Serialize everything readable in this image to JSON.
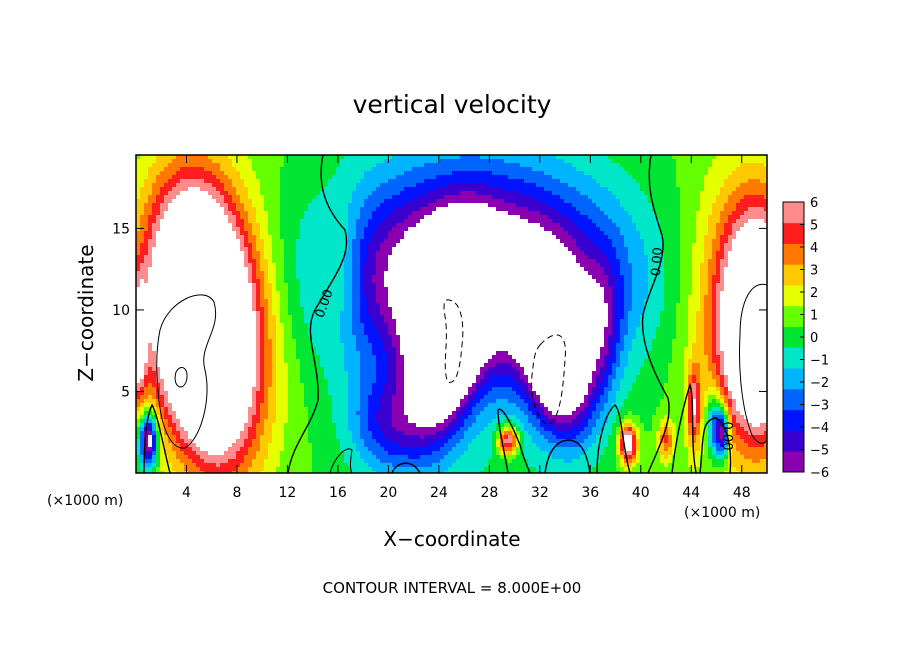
{
  "chart_data": {
    "type": "heatmap",
    "title": "vertical velocity",
    "xlabel": "X−coordinate",
    "ylabel": "Z−coordinate",
    "x_unit": "(×1000 m)",
    "x_unit_right": "(×1000 m)",
    "xlim": [
      0,
      50
    ],
    "ylim": [
      0,
      19.5
    ],
    "x_ticks": [
      {
        "value": 4,
        "label": "4"
      },
      {
        "value": 8,
        "label": "8"
      },
      {
        "value": 12,
        "label": "12"
      },
      {
        "value": 16,
        "label": "16"
      },
      {
        "value": 20,
        "label": "20"
      },
      {
        "value": 24,
        "label": "24"
      },
      {
        "value": 28,
        "label": "28"
      },
      {
        "value": 32,
        "label": "32"
      },
      {
        "value": 36,
        "label": "36"
      },
      {
        "value": 40,
        "label": "40"
      },
      {
        "value": 44,
        "label": "44"
      },
      {
        "value": 48,
        "label": "48"
      }
    ],
    "y_ticks": [
      {
        "value": 5,
        "label": "5"
      },
      {
        "value": 10,
        "label": "10"
      },
      {
        "value": 15,
        "label": "15"
      }
    ],
    "colorbar": {
      "min": -6,
      "max": 6,
      "ticks": [
        {
          "value": 6,
          "label": "6"
        },
        {
          "value": 5,
          "label": "5"
        },
        {
          "value": 4,
          "label": "4"
        },
        {
          "value": 3,
          "label": "3"
        },
        {
          "value": 2,
          "label": "2"
        },
        {
          "value": 1,
          "label": "1"
        },
        {
          "value": 0,
          "label": "0"
        },
        {
          "value": -1,
          "label": "−1"
        },
        {
          "value": -2,
          "label": "−2"
        },
        {
          "value": -3,
          "label": "−3"
        },
        {
          "value": -4,
          "label": "−4"
        },
        {
          "value": -5,
          "label": "−5"
        },
        {
          "value": -6,
          "label": "−6"
        }
      ],
      "colors": [
        "#8a00b0",
        "#3a00d0",
        "#0014ff",
        "#0064ff",
        "#00b4ff",
        "#00e6c8",
        "#00e632",
        "#64ff00",
        "#e6ff00",
        "#ffc800",
        "#ff7800",
        "#ff1e1e",
        "#ff8c8c"
      ]
    },
    "contour_labels": [
      {
        "text": "0.00",
        "x": 14.8,
        "y": 10.5,
        "rotate": -70
      },
      {
        "text": "0.00",
        "x": 41.2,
        "y": 13.3,
        "rotate": -85
      },
      {
        "text": "0.00",
        "x": 47.0,
        "y": 2.3,
        "rotate": 90
      }
    ],
    "features": [
      {
        "x": 5.5,
        "z": 9,
        "w": 12,
        "rx": 3.5,
        "rz": 8,
        "rot": -0.15
      },
      {
        "x": 5.0,
        "z": 10,
        "w": 6,
        "rx": 5.5,
        "rz": 7.5,
        "rot": -0.1
      },
      {
        "x": 1.0,
        "z": 2.0,
        "w": -9,
        "rx": 0.7,
        "rz": 1.6,
        "rot": 0
      },
      {
        "x": 0.2,
        "z": 8,
        "w": 6,
        "rx": 0.6,
        "rz": 3.5,
        "rot": 0
      },
      {
        "x": 27,
        "z": 12,
        "w": -10,
        "rx": 11,
        "rz": 6,
        "rot": 0
      },
      {
        "x": 24.5,
        "z": 8,
        "w": -11,
        "rx": 2.5,
        "rz": 5.5,
        "rot": 0.2
      },
      {
        "x": 33.5,
        "z": 7,
        "w": -11,
        "rx": 2.5,
        "rz": 4.5,
        "rot": -0.2
      },
      {
        "x": 20,
        "z": 3,
        "w": -4,
        "rx": 3,
        "rz": 3,
        "rot": 0
      },
      {
        "x": 16.0,
        "z": 12.5,
        "w": 2.5,
        "rx": 1.8,
        "rz": 4,
        "rot": 0
      },
      {
        "x": 29.5,
        "z": 2.0,
        "w": 7,
        "rx": 0.8,
        "rz": 0.9,
        "rot": 0
      },
      {
        "x": 39.0,
        "z": 1.8,
        "w": 8,
        "rx": 0.7,
        "rz": 1.2,
        "rot": 0
      },
      {
        "x": 42.0,
        "z": 2.0,
        "w": 4,
        "rx": 0.6,
        "rz": 1.2,
        "rot": 0
      },
      {
        "x": 44.2,
        "z": 4.0,
        "w": 5,
        "rx": 0.5,
        "rz": 2.5,
        "rot": 0
      },
      {
        "x": 45.8,
        "z": 3.0,
        "w": -5,
        "rx": 0.6,
        "rz": 2.0,
        "rot": 0
      },
      {
        "x": 46.5,
        "z": 2.5,
        "w": -8,
        "rx": 0.5,
        "rz": 1.5,
        "rot": 0
      },
      {
        "x": 49.5,
        "z": 9.0,
        "w": 10,
        "rx": 2.6,
        "rz": 6.5,
        "rot": 0
      },
      {
        "x": 48.0,
        "z": 10.0,
        "w": 5,
        "rx": 4.0,
        "rz": 8,
        "rot": 0
      },
      {
        "x": 37.0,
        "z": 9.0,
        "w": -3,
        "rx": 1.5,
        "rz": 4,
        "rot": 0
      }
    ]
  },
  "footer": {
    "contour_interval": "CONTOUR INTERVAL = 8.000E+00"
  }
}
